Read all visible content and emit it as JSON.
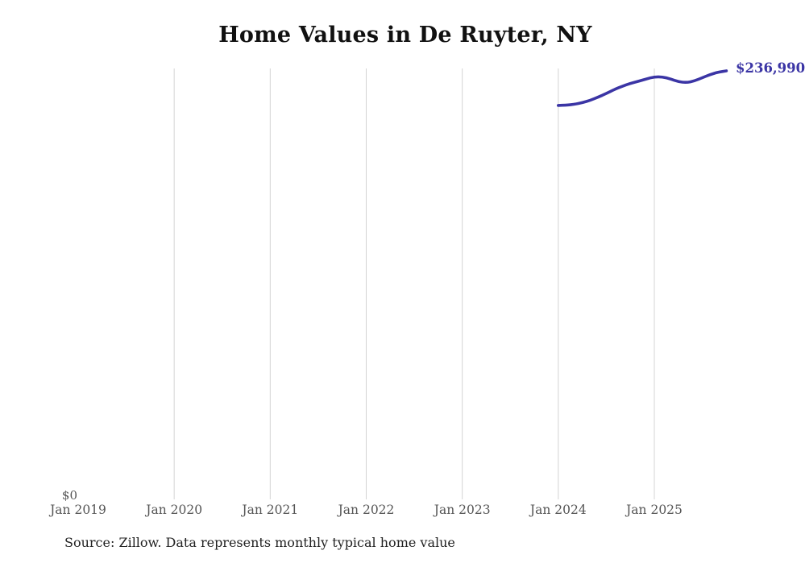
{
  "page": {
    "title": "Home Values in De Ruyter, NY",
    "source_note": "Source: Zillow. Data represents monthly typical home value"
  },
  "chart_data": {
    "type": "line",
    "title": "Home Values in De Ruyter, NY",
    "xlabel": "",
    "ylabel": "",
    "legend": "none",
    "grid": "vertical-only",
    "x_axis": {
      "tick_labels": [
        "Jan 2019",
        "Jan 2020",
        "Jan 2021",
        "Jan 2022",
        "Jan 2023",
        "Jan 2024",
        "Jan 2025"
      ],
      "tick_years": [
        2019,
        2020,
        2021,
        2022,
        2023,
        2024,
        2025
      ],
      "gridline_years": [
        2020,
        2021,
        2022,
        2023,
        2024,
        2025
      ]
    },
    "y_axis": {
      "zero_label": "$0",
      "ylim": [
        0,
        238000
      ]
    },
    "colors": {
      "line": "#3b35a5",
      "gridline": "#d4d4d4",
      "axis_text": "#555555",
      "title_text": "#111111",
      "source_text": "#222222"
    },
    "series": [
      {
        "name": "Monthly typical home value",
        "end_label": "$236,990",
        "color": "#3b35a5",
        "points": [
          {
            "month": "2024-01",
            "value": 217900
          },
          {
            "month": "2024-02",
            "value": 218000
          },
          {
            "month": "2024-03",
            "value": 218500
          },
          {
            "month": "2024-04",
            "value": 219400
          },
          {
            "month": "2024-05",
            "value": 220700
          },
          {
            "month": "2024-06",
            "value": 222500
          },
          {
            "month": "2024-07",
            "value": 224500
          },
          {
            "month": "2024-08",
            "value": 226700
          },
          {
            "month": "2024-09",
            "value": 228500
          },
          {
            "month": "2024-10",
            "value": 230100
          },
          {
            "month": "2024-11",
            "value": 231200
          },
          {
            "month": "2024-12",
            "value": 232500
          },
          {
            "month": "2025-01",
            "value": 233700
          },
          {
            "month": "2025-02",
            "value": 233700
          },
          {
            "month": "2025-03",
            "value": 232600
          },
          {
            "month": "2025-04",
            "value": 231000
          },
          {
            "month": "2025-05",
            "value": 230500
          },
          {
            "month": "2025-06",
            "value": 231400
          },
          {
            "month": "2025-07",
            "value": 233200
          },
          {
            "month": "2025-08",
            "value": 235000
          },
          {
            "month": "2025-09",
            "value": 236300
          },
          {
            "month": "2025-10",
            "value": 236990
          }
        ]
      }
    ]
  }
}
